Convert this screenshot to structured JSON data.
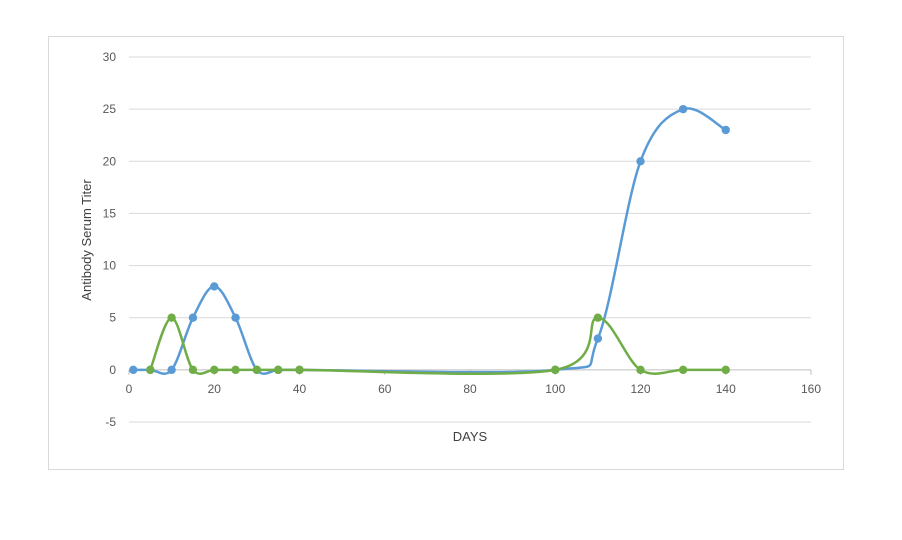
{
  "chart_data": {
    "type": "line",
    "title": "",
    "xlabel": "DAYS",
    "ylabel": "Antibody Serum Titer",
    "xlim": [
      0,
      160
    ],
    "ylim": [
      -5,
      30
    ],
    "x_ticks": [
      0,
      20,
      40,
      60,
      80,
      100,
      120,
      140,
      160
    ],
    "y_ticks": [
      -5,
      0,
      5,
      10,
      15,
      20,
      25,
      30
    ],
    "grid": "horizontal",
    "legend": "none",
    "smooth": true,
    "series": [
      {
        "color": "#5b9bd5",
        "points": [
          [
            1,
            0
          ],
          [
            5,
            0
          ],
          [
            10,
            0
          ],
          [
            15,
            5
          ],
          [
            20,
            8
          ],
          [
            25,
            5
          ],
          [
            30,
            0
          ],
          [
            35,
            0
          ],
          [
            40,
            0
          ],
          [
            100,
            0
          ],
          [
            110,
            3
          ],
          [
            120,
            20
          ],
          [
            130,
            25
          ],
          [
            140,
            23
          ]
        ]
      },
      {
        "color": "#70ad47",
        "points": [
          [
            5,
            0
          ],
          [
            10,
            5
          ],
          [
            15,
            0
          ],
          [
            20,
            0
          ],
          [
            25,
            0
          ],
          [
            30,
            0
          ],
          [
            35,
            0
          ],
          [
            40,
            0
          ],
          [
            100,
            0
          ],
          [
            110,
            5
          ],
          [
            120,
            0
          ],
          [
            130,
            0
          ],
          [
            140,
            0
          ]
        ]
      }
    ]
  }
}
